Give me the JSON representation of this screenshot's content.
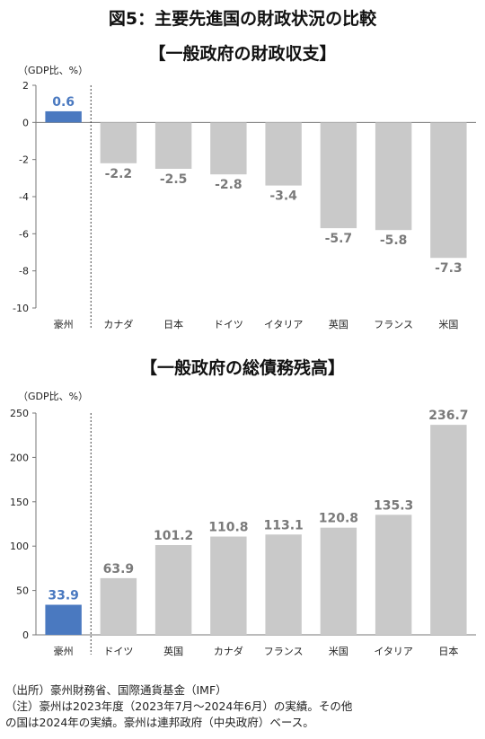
{
  "title": "図5：主要先進国の財政状況の比較",
  "colors": {
    "highlight": "#4a79c0",
    "bar": "#c9c9c9",
    "highlight_label": "#4a79c0",
    "label": "#7a7a7a",
    "axis": "#777777"
  },
  "chart_data": [
    {
      "type": "bar",
      "title": "【一般政府の財政収支】",
      "unit": "（GDP比、%）",
      "categories": [
        "豪州",
        "カナダ",
        "日本",
        "ドイツ",
        "イタリア",
        "英国",
        "フランス",
        "米国"
      ],
      "values": [
        0.6,
        -2.2,
        -2.5,
        -2.8,
        -3.4,
        -5.7,
        -5.8,
        -7.3
      ],
      "value_labels": [
        "0.6",
        "-2.2",
        "-2.5",
        "-2.8",
        "-3.4",
        "-5.7",
        "-5.8",
        "-7.3"
      ],
      "ylim": [
        -10,
        2
      ],
      "yticks": [
        "2",
        "0",
        "-2",
        "-4",
        "-6",
        "-8",
        "-10"
      ],
      "highlight_index": 0
    },
    {
      "type": "bar",
      "title": "【一般政府の総債務残高】",
      "unit": "（GDP比、%）",
      "categories": [
        "豪州",
        "ドイツ",
        "英国",
        "カナダ",
        "フランス",
        "米国",
        "イタリア",
        "日本"
      ],
      "values": [
        33.9,
        63.9,
        101.2,
        110.8,
        113.1,
        120.8,
        135.3,
        236.7
      ],
      "value_labels": [
        "33.9",
        "63.9",
        "101.2",
        "110.8",
        "113.1",
        "120.8",
        "135.3",
        "236.7"
      ],
      "ylim": [
        0,
        250
      ],
      "yticks": [
        "250",
        "200",
        "150",
        "100",
        "50",
        "0"
      ],
      "highlight_index": 0
    }
  ],
  "notes": [
    "（出所）豪州財務省、国際通貨基金（IMF）",
    "（注）豪州は2023年度（2023年7月～2024年6月）の実績。その他",
    "の国は2024年の実績。豪州は連邦政府（中央政府）ベース。"
  ]
}
